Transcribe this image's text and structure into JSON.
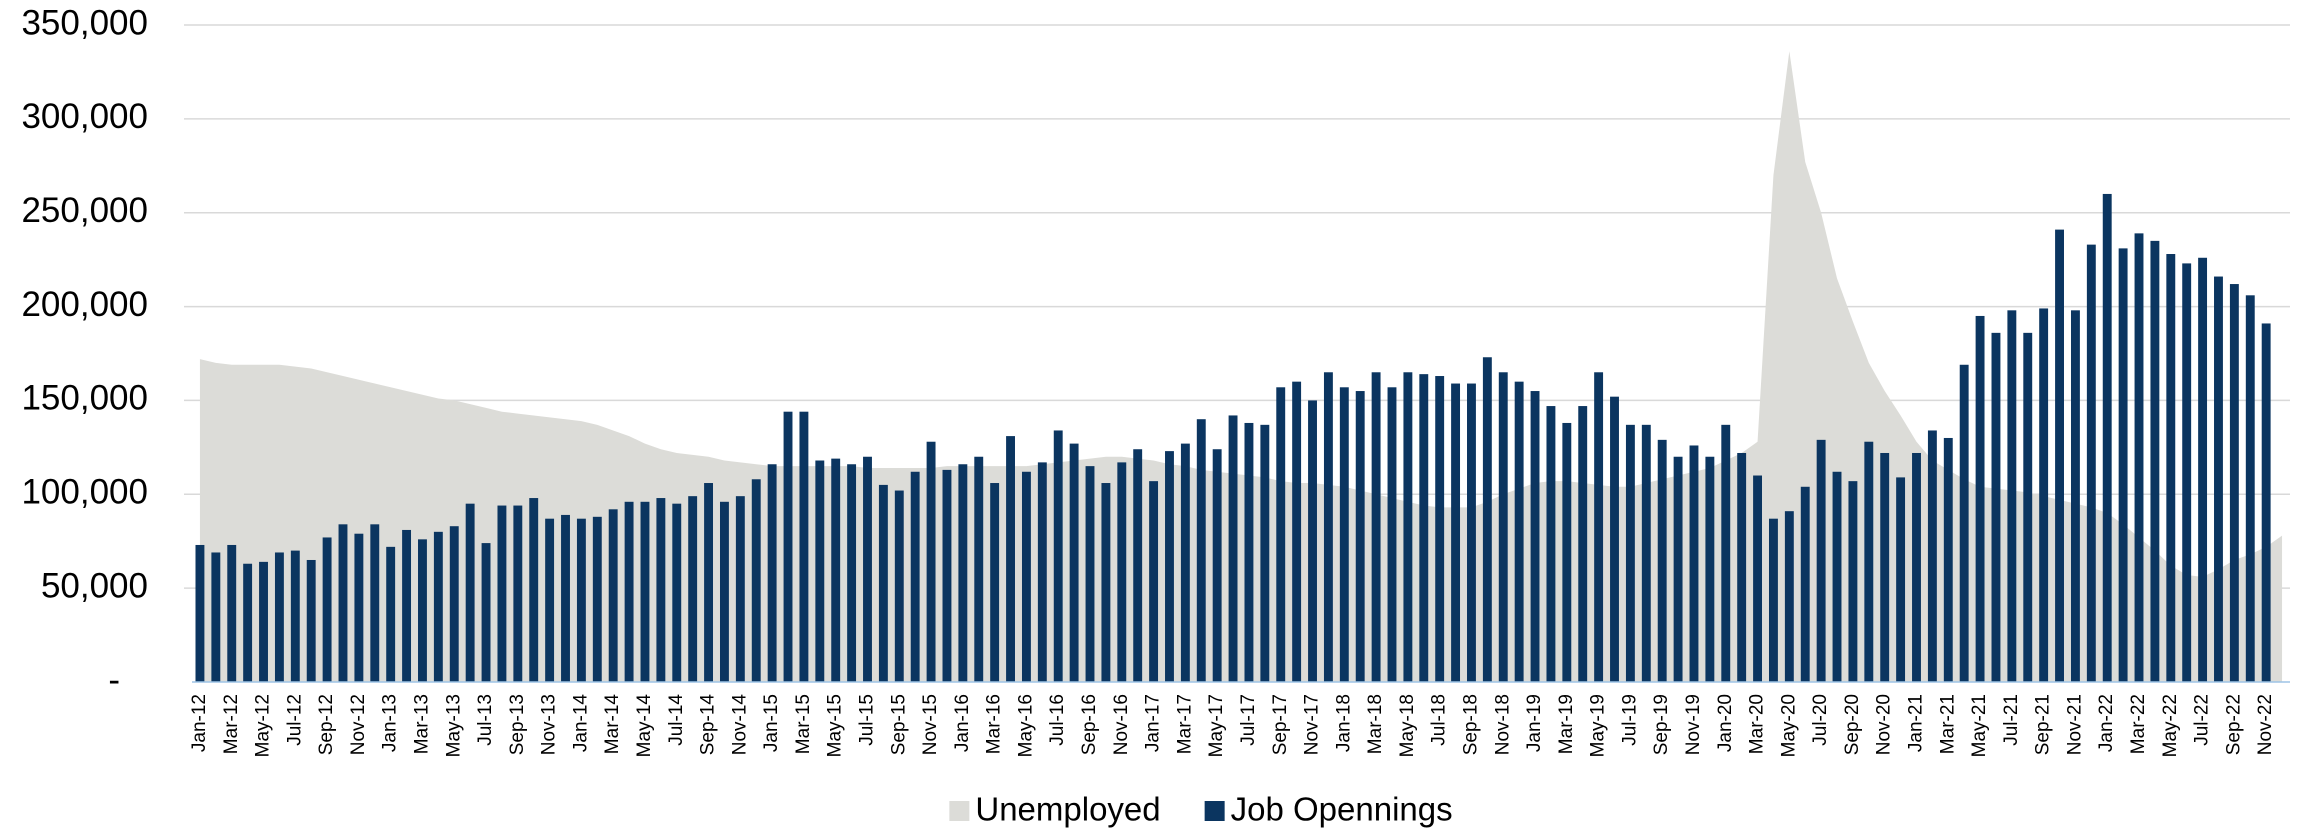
{
  "chart_data": {
    "type": "bar-area",
    "categories": [
      "Jan-12",
      null,
      "Mar-12",
      null,
      "May-12",
      null,
      "Jul-12",
      null,
      "Sep-12",
      null,
      "Nov-12",
      null,
      "Jan-13",
      null,
      "Mar-13",
      null,
      "May-13",
      null,
      "Jul-13",
      null,
      "Sep-13",
      null,
      "Nov-13",
      null,
      "Jan-14",
      null,
      "Mar-14",
      null,
      "May-14",
      null,
      "Jul-14",
      null,
      "Sep-14",
      null,
      "Nov-14",
      null,
      "Jan-15",
      null,
      "Mar-15",
      null,
      "May-15",
      null,
      "Jul-15",
      null,
      "Sep-15",
      null,
      "Nov-15",
      null,
      "Jan-16",
      null,
      "Mar-16",
      null,
      "May-16",
      null,
      "Jul-16",
      null,
      "Sep-16",
      null,
      "Nov-16",
      null,
      "Jan-17",
      null,
      "Mar-17",
      null,
      "May-17",
      null,
      "Jul-17",
      null,
      "Sep-17",
      null,
      "Nov-17",
      null,
      "Jan-18",
      null,
      "Mar-18",
      null,
      "May-18",
      null,
      "Jul-18",
      null,
      "Sep-18",
      null,
      "Nov-18",
      null,
      "Jan-19",
      null,
      "Mar-19",
      null,
      "May-19",
      null,
      "Jul-19",
      null,
      "Sep-19",
      null,
      "Nov-19",
      null,
      "Jan-20",
      null,
      "Mar-20",
      null,
      "May-20",
      null,
      "Jul-20",
      null,
      "Sep-20",
      null,
      "Nov-20",
      null,
      "Jan-21",
      null,
      "Mar-21",
      null,
      "May-21",
      null,
      "Jul-21",
      null,
      "Sep-21",
      null,
      "Nov-21",
      null,
      "Jan-22",
      null,
      "Mar-22",
      null,
      "May-22",
      null,
      "Jul-22",
      null,
      "Sep-22",
      null,
      "Nov-22",
      null
    ],
    "series": [
      {
        "name": "Unemployed",
        "kind": "area",
        "color": "#dcdcd8",
        "values": [
          172000,
          170000,
          169000,
          169000,
          169000,
          169000,
          168000,
          167000,
          165000,
          163000,
          161000,
          159000,
          157000,
          155000,
          153000,
          151000,
          150000,
          148000,
          146000,
          144000,
          143000,
          142000,
          141000,
          140000,
          139000,
          137000,
          134000,
          131000,
          127000,
          124000,
          122000,
          121000,
          120000,
          118000,
          117000,
          116000,
          115000,
          115000,
          115000,
          115000,
          115000,
          115000,
          114000,
          114000,
          114000,
          114000,
          114000,
          115000,
          115000,
          115000,
          115000,
          115000,
          115000,
          116000,
          117000,
          118000,
          119000,
          120000,
          120000,
          119000,
          118000,
          116000,
          115000,
          113000,
          112000,
          111000,
          110000,
          109000,
          107000,
          106000,
          106000,
          105000,
          104000,
          102000,
          100000,
          98000,
          96000,
          94000,
          93000,
          93000,
          93000,
          96000,
          100000,
          103000,
          106000,
          107000,
          107000,
          106000,
          105000,
          104000,
          104000,
          106000,
          108000,
          110000,
          112000,
          114000,
          118000,
          122000,
          128000,
          270000,
          336000,
          277000,
          250000,
          215000,
          192000,
          170000,
          155000,
          142000,
          128000,
          118000,
          113000,
          108000,
          104000,
          103000,
          102000,
          101000,
          99000,
          97000,
          95000,
          93000,
          90000,
          84000,
          77000,
          70000,
          62000,
          57000,
          56000,
          60000,
          65000,
          68000,
          72000,
          78000
        ]
      },
      {
        "name": "Job Opennings",
        "kind": "bar",
        "color": "#0b3560",
        "values": [
          73000,
          69000,
          73000,
          63000,
          64000,
          69000,
          70000,
          65000,
          77000,
          84000,
          79000,
          84000,
          72000,
          81000,
          76000,
          80000,
          83000,
          95000,
          74000,
          94000,
          94000,
          98000,
          87000,
          89000,
          87000,
          88000,
          92000,
          96000,
          96000,
          98000,
          95000,
          99000,
          106000,
          96000,
          99000,
          108000,
          116000,
          144000,
          144000,
          118000,
          119000,
          116000,
          120000,
          105000,
          102000,
          112000,
          128000,
          113000,
          116000,
          120000,
          106000,
          131000,
          112000,
          117000,
          134000,
          127000,
          115000,
          106000,
          117000,
          124000,
          107000,
          123000,
          127000,
          140000,
          124000,
          142000,
          138000,
          137000,
          157000,
          160000,
          150000,
          165000,
          157000,
          155000,
          165000,
          157000,
          165000,
          164000,
          163000,
          159000,
          159000,
          173000,
          165000,
          160000,
          155000,
          147000,
          138000,
          147000,
          165000,
          152000,
          137000,
          137000,
          129000,
          120000,
          126000,
          120000,
          137000,
          122000,
          110000,
          87000,
          91000,
          104000,
          129000,
          112000,
          107000,
          128000,
          122000,
          109000,
          122000,
          134000,
          130000,
          169000,
          195000,
          186000,
          198000,
          186000,
          199000,
          241000,
          198000,
          233000,
          260000,
          231000,
          239000,
          235000,
          228000,
          223000,
          226000,
          216000,
          212000,
          206000,
          191000,
          null
        ]
      }
    ],
    "ylim": [
      0,
      350000
    ],
    "yticks": [
      {
        "value": 0,
        "label": "-"
      },
      {
        "value": 50000,
        "label": "50,000"
      },
      {
        "value": 100000,
        "label": "100,000"
      },
      {
        "value": 150000,
        "label": "150,000"
      },
      {
        "value": 200000,
        "label": "200,000"
      },
      {
        "value": 250000,
        "label": "250,000"
      },
      {
        "value": 300000,
        "label": "300,000"
      },
      {
        "value": 350000,
        "label": "350,000"
      }
    ],
    "grid": true,
    "legend": "bottom"
  }
}
